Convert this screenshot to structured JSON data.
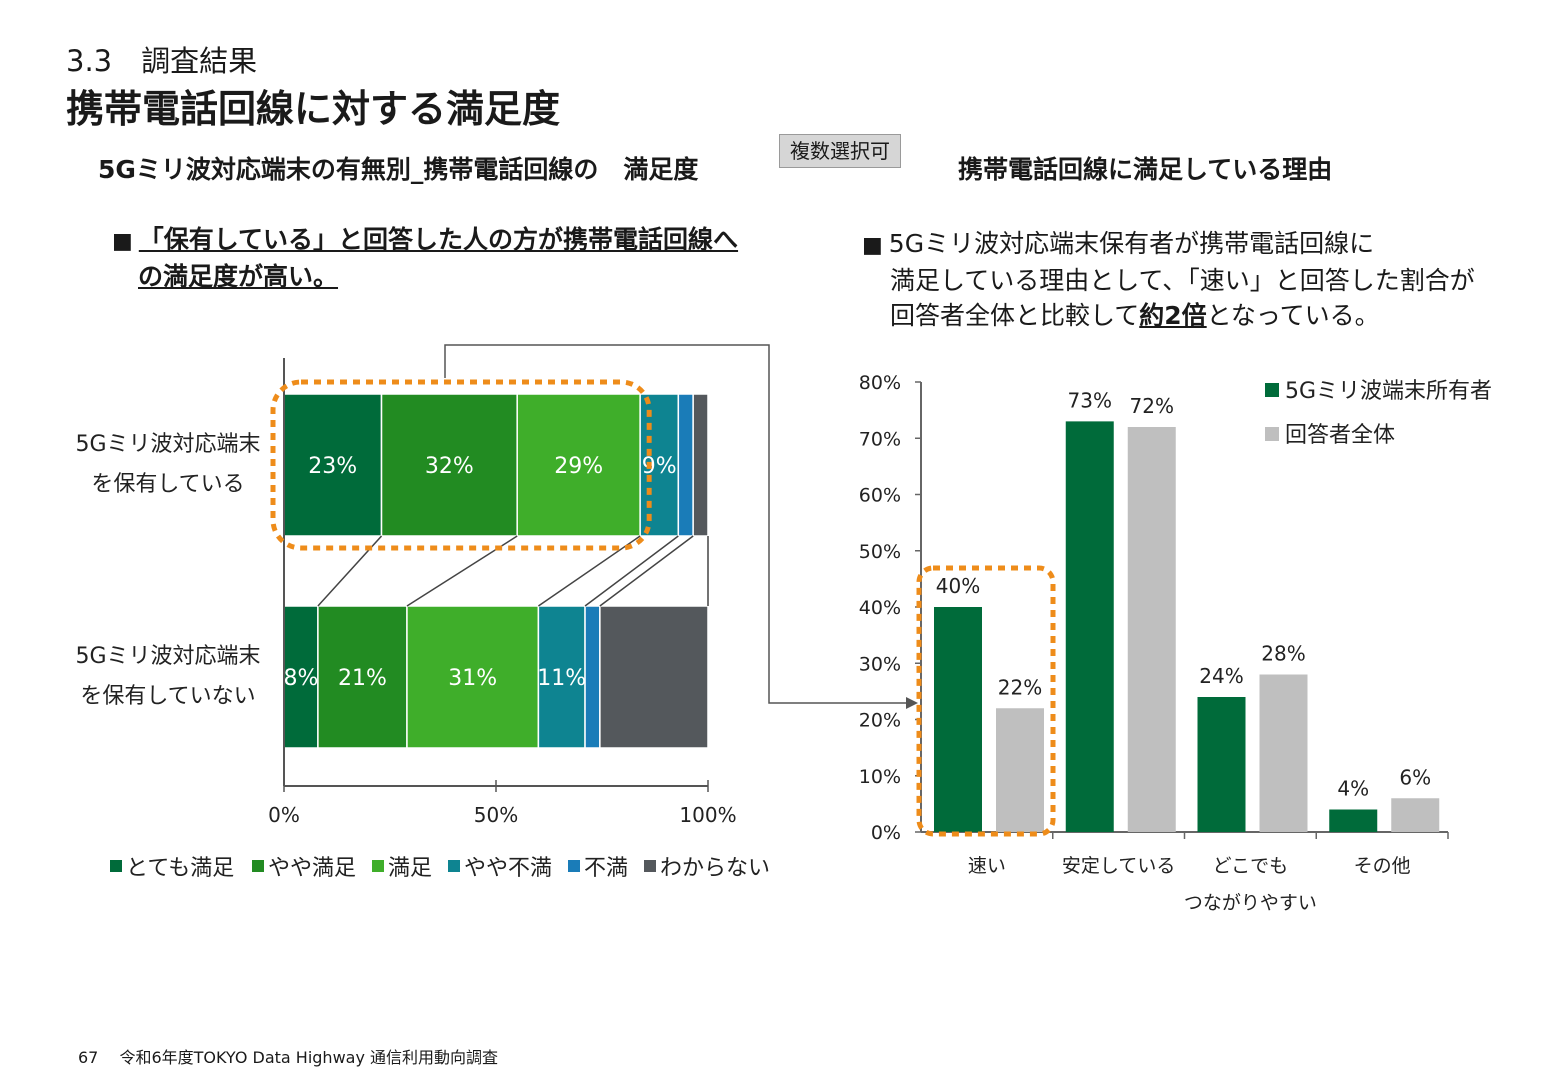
{
  "header": {
    "section_num": "3.3　調査結果",
    "title": "携帯電話回線に対する満足度"
  },
  "left": {
    "subtitle": "5Gミリ波対応端末の有無別_携帯電話回線の　満足度",
    "note_part1": "「保有している」と回答した人の方が携帯電話回線へ",
    "note_part2": "の満足度が高い。"
  },
  "badge": "複数選択可",
  "right": {
    "subtitle": "携帯電話回線に満足している理由",
    "note_line1": "5Gミリ波対応端末保有者が携帯電話回線に",
    "note_line2": "満足している理由として、「速い」と回答した割合が",
    "note_line3_pre": "回答者全体と比較して",
    "note_line3_em": "約2倍",
    "note_line3_post": "となっている。"
  },
  "footer": {
    "page": "67",
    "text": "令和6年度TOKYO Data Highway 通信利用動向調査"
  },
  "chart_data": [
    {
      "type": "bar",
      "orientation": "horizontal",
      "stacked": true,
      "categories": [
        [
          "5Gミリ波対応端末",
          "を保有している"
        ],
        [
          "5Gミリ波対応端末",
          "を保有していない"
        ]
      ],
      "series": [
        {
          "name": "とても満足",
          "values": [
            23,
            8
          ],
          "color": "#006b3a",
          "labels": [
            "23%",
            "8%"
          ]
        },
        {
          "name": "やや満足",
          "values": [
            32,
            21
          ],
          "color": "#228b22",
          "labels": [
            "32%",
            "21%"
          ]
        },
        {
          "name": "満足",
          "values": [
            29,
            31
          ],
          "color": "#3fae2a",
          "labels": [
            "29%",
            "31%"
          ]
        },
        {
          "name": "やや不満",
          "values": [
            9,
            11
          ],
          "color": "#0e8491",
          "labels": [
            "9%",
            "11%"
          ]
        },
        {
          "name": "不満",
          "values": [
            3.5,
            3.5
          ],
          "color": "#1a7cb8",
          "labels": [
            "",
            ""
          ]
        },
        {
          "name": "わからない",
          "values": [
            3.5,
            25.5
          ],
          "color": "#54585c",
          "labels": [
            "",
            ""
          ]
        }
      ],
      "xlim": [
        0,
        100
      ],
      "xticks": [
        "0%",
        "50%",
        "100%"
      ],
      "legend": "bottom",
      "highlight_series": [
        0,
        1,
        2
      ],
      "highlight_category": 0
    },
    {
      "type": "bar",
      "categories": [
        [
          "速い"
        ],
        [
          "安定している"
        ],
        [
          "どこでも",
          "つながりやすい"
        ],
        [
          "その他"
        ]
      ],
      "series": [
        {
          "name": "5Gミリ波端末所有者",
          "values": [
            40,
            73,
            24,
            4
          ],
          "color": "#006b3a",
          "labels": [
            "40%",
            "73%",
            "24%",
            "4%"
          ]
        },
        {
          "name": "回答者全体",
          "values": [
            22,
            72,
            28,
            6
          ],
          "color": "#bfbfbf",
          "labels": [
            "22%",
            "72%",
            "28%",
            "6%"
          ]
        }
      ],
      "ylim": [
        0,
        80
      ],
      "yticks": [
        "0%",
        "10%",
        "20%",
        "30%",
        "40%",
        "50%",
        "60%",
        "70%",
        "80%"
      ],
      "legend": "top-right",
      "highlight_category": 0
    }
  ]
}
